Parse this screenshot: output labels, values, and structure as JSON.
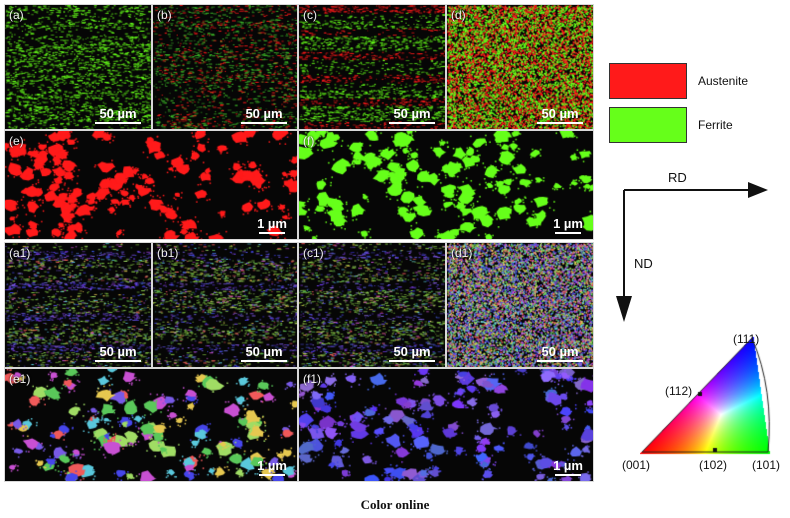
{
  "panels": {
    "a": {
      "label": "(a)",
      "scale": "50 µm"
    },
    "b": {
      "label": "(b)",
      "scale": "50 µm"
    },
    "c": {
      "label": "(c)",
      "scale": "50 µm"
    },
    "d": {
      "label": "(d)",
      "scale": "50 µm"
    },
    "e": {
      "label": "(e)",
      "scale": "1 µm"
    },
    "f": {
      "label": "(f)",
      "scale": "1 µm"
    },
    "a1": {
      "label": "(a1)",
      "scale": "50 µm"
    },
    "b1": {
      "label": "(b1)",
      "scale": "50 µm"
    },
    "c1": {
      "label": "(c1)",
      "scale": "50 µm"
    },
    "d1": {
      "label": "(d1)",
      "scale": "50 µm"
    },
    "e1": {
      "label": "(e1)",
      "scale": "1 µm"
    },
    "f1": {
      "label": "(f1)",
      "scale": "1 µm"
    }
  },
  "legend": {
    "austenite": {
      "label": "Austenite",
      "color": "#ff1a1a"
    },
    "ferrite": {
      "label": "Ferrite",
      "color": "#66ff1a"
    }
  },
  "axes": {
    "rd": "RD",
    "nd": "ND"
  },
  "ipf": {
    "p111": "(111)",
    "p112": "(112)",
    "p001": "(001)",
    "p102": "(102)",
    "p101": "(101)"
  },
  "caption": "Color online"
}
